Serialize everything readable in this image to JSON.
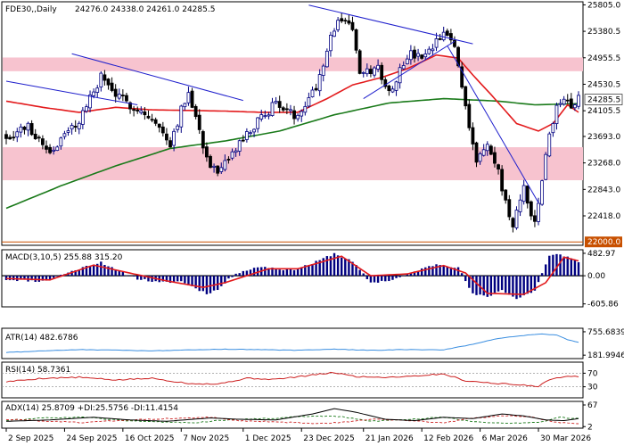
{
  "header": {
    "symbol": "FDE30,,Daily",
    "ohlc": "24276.0 24338.0 24261.0 24285.5"
  },
  "colors": {
    "bull": "#000080",
    "bear": "#000000",
    "ma_fast": "#e31a1c",
    "ma_slow": "#1a7a1a",
    "trend": "#1f1fcc",
    "zone": "#f7c3cf",
    "support": "#c85000",
    "macd_line": "#e31a1c",
    "macd_hist": "#000080",
    "atr": "#3a8ee0",
    "rsi": "#cc2020",
    "adx": "#000000",
    "dip": "#1a7a1a",
    "dim": "#cc2020"
  },
  "chart_data": {
    "type": "candlestick",
    "main": {
      "y_ticks": [
        "25805.0",
        "25380.5",
        "24955.5",
        "24530.5",
        "24105.5",
        "23693.0",
        "23268.0",
        "22843.0",
        "22418.0"
      ],
      "y_tick_values": [
        25805.0,
        25380.5,
        24955.5,
        24530.5,
        24105.5,
        23693.0,
        23268.0,
        22843.0,
        22418.0
      ],
      "ylim": [
        21960,
        25840
      ],
      "current_price_label": "24285.5",
      "current_price": 24285.5,
      "support_label": "22000.0",
      "support": 22000.0,
      "zones": [
        [
          24740,
          24960
        ],
        [
          22990,
          23520
        ]
      ],
      "candles_n": 158,
      "price_anchors": [
        [
          0,
          23700
        ],
        [
          6,
          23850
        ],
        [
          12,
          23450
        ],
        [
          20,
          23950
        ],
        [
          26,
          24650
        ],
        [
          31,
          24300
        ],
        [
          36,
          24150
        ],
        [
          40,
          23950
        ],
        [
          45,
          23600
        ],
        [
          50,
          24450
        ],
        [
          55,
          23350
        ],
        [
          58,
          23050
        ],
        [
          63,
          23500
        ],
        [
          68,
          23850
        ],
        [
          74,
          24250
        ],
        [
          79,
          24000
        ],
        [
          85,
          24500
        ],
        [
          89,
          25300
        ],
        [
          92,
          25600
        ],
        [
          95,
          25450
        ],
        [
          97,
          24650
        ],
        [
          102,
          24800
        ],
        [
          105,
          24400
        ],
        [
          110,
          25000
        ],
        [
          115,
          24950
        ],
        [
          120,
          25350
        ],
        [
          123,
          25150
        ],
        [
          126,
          24200
        ],
        [
          129,
          23300
        ],
        [
          132,
          23550
        ],
        [
          135,
          23100
        ],
        [
          139,
          22200
        ],
        [
          142,
          22900
        ],
        [
          145,
          22250
        ],
        [
          149,
          23750
        ],
        [
          152,
          24300
        ],
        [
          155,
          24200
        ],
        [
          157,
          24285
        ]
      ],
      "ma_fast_anchors": [
        [
          0,
          24260
        ],
        [
          10,
          24160
        ],
        [
          20,
          24080
        ],
        [
          30,
          24160
        ],
        [
          40,
          24120
        ],
        [
          50,
          24110
        ],
        [
          60,
          24100
        ],
        [
          70,
          24080
        ],
        [
          80,
          24080
        ],
        [
          88,
          24300
        ],
        [
          95,
          24520
        ],
        [
          103,
          24640
        ],
        [
          110,
          24780
        ],
        [
          118,
          25000
        ],
        [
          124,
          24950
        ],
        [
          128,
          24680
        ],
        [
          134,
          24300
        ],
        [
          140,
          23900
        ],
        [
          146,
          23780
        ],
        [
          150,
          23900
        ],
        [
          154,
          24200
        ],
        [
          157,
          24080
        ]
      ],
      "ma_slow_anchors": [
        [
          0,
          22540
        ],
        [
          15,
          22900
        ],
        [
          30,
          23220
        ],
        [
          45,
          23500
        ],
        [
          60,
          23620
        ],
        [
          75,
          23780
        ],
        [
          90,
          24040
        ],
        [
          105,
          24230
        ],
        [
          120,
          24300
        ],
        [
          135,
          24260
        ],
        [
          145,
          24200
        ],
        [
          157,
          24220
        ]
      ],
      "trendlines": [
        [
          [
            0,
            24580
          ],
          [
            36,
            24200
          ]
        ],
        [
          [
            18,
            25020
          ],
          [
            65,
            24270
          ]
        ],
        [
          [
            83,
            25800
          ],
          [
            128,
            25180
          ]
        ],
        [
          [
            98,
            24300
          ],
          [
            123,
            25220
          ]
        ],
        [
          [
            121,
            25150
          ],
          [
            146,
            22630
          ]
        ]
      ]
    },
    "x_ticks": [
      "2 Sep 2025",
      "24 Sep 2025",
      "16 Oct 2025",
      "7 Nov 2025",
      "1 Dec 2025",
      "23 Dec 2025",
      "21 Jan 2026",
      "12 Feb 2026",
      "6 Mar 2026",
      "30 Mar 2026"
    ],
    "x_tick_index": [
      0,
      16,
      32,
      48,
      65,
      81,
      98,
      114,
      130,
      146
    ],
    "macd": {
      "label": "MACD(3,10,5) 255.88 315.20",
      "y_ticks": [
        "482.97",
        "0.00",
        "-605.86"
      ],
      "y_tick_values": [
        482.97,
        0.0,
        -605.86
      ],
      "ylim": [
        -650,
        540
      ],
      "hist_anchors": [
        [
          0,
          -80
        ],
        [
          10,
          -120
        ],
        [
          20,
          150
        ],
        [
          26,
          300
        ],
        [
          30,
          120
        ],
        [
          36,
          -60
        ],
        [
          42,
          -150
        ],
        [
          48,
          -120
        ],
        [
          55,
          -380
        ],
        [
          58,
          -300
        ],
        [
          63,
          60
        ],
        [
          70,
          200
        ],
        [
          78,
          120
        ],
        [
          84,
          260
        ],
        [
          90,
          480
        ],
        [
          95,
          300
        ],
        [
          100,
          -150
        ],
        [
          106,
          -90
        ],
        [
          112,
          90
        ],
        [
          118,
          250
        ],
        [
          124,
          180
        ],
        [
          128,
          -400
        ],
        [
          132,
          -450
        ],
        [
          136,
          -300
        ],
        [
          140,
          -500
        ],
        [
          145,
          -320
        ],
        [
          149,
          420
        ],
        [
          152,
          470
        ],
        [
          157,
          300
        ]
      ],
      "signal_anchors": [
        [
          0,
          -60
        ],
        [
          12,
          -90
        ],
        [
          24,
          230
        ],
        [
          32,
          90
        ],
        [
          44,
          -110
        ],
        [
          54,
          -250
        ],
        [
          60,
          -150
        ],
        [
          72,
          150
        ],
        [
          80,
          150
        ],
        [
          92,
          420
        ],
        [
          100,
          0
        ],
        [
          110,
          40
        ],
        [
          120,
          220
        ],
        [
          126,
          60
        ],
        [
          132,
          -380
        ],
        [
          142,
          -400
        ],
        [
          148,
          -150
        ],
        [
          153,
          400
        ],
        [
          157,
          320
        ]
      ]
    },
    "atr": {
      "label": "ATR(14) 482.6786",
      "y_ticks": [
        "755.6839",
        "181.9946"
      ],
      "y_tick_values": [
        755.6839,
        181.9946
      ],
      "ylim": [
        120,
        820
      ],
      "anchors": [
        [
          0,
          250
        ],
        [
          20,
          320
        ],
        [
          40,
          290
        ],
        [
          60,
          330
        ],
        [
          80,
          300
        ],
        [
          90,
          330
        ],
        [
          100,
          300
        ],
        [
          110,
          320
        ],
        [
          120,
          310
        ],
        [
          128,
          450
        ],
        [
          134,
          580
        ],
        [
          140,
          650
        ],
        [
          146,
          700
        ],
        [
          151,
          680
        ],
        [
          154,
          560
        ],
        [
          157,
          500
        ]
      ]
    },
    "rsi": {
      "label": "RSI(14) 58.7361",
      "y_ticks": [
        "70",
        "30"
      ],
      "y_tick_values": [
        70,
        30
      ],
      "ylim": [
        0,
        100
      ],
      "anchors": [
        [
          0,
          45
        ],
        [
          10,
          55
        ],
        [
          20,
          58
        ],
        [
          30,
          50
        ],
        [
          40,
          55
        ],
        [
          50,
          40
        ],
        [
          58,
          38
        ],
        [
          66,
          55
        ],
        [
          74,
          52
        ],
        [
          82,
          62
        ],
        [
          90,
          72
        ],
        [
          96,
          60
        ],
        [
          104,
          58
        ],
        [
          112,
          62
        ],
        [
          120,
          68
        ],
        [
          126,
          48
        ],
        [
          132,
          42
        ],
        [
          140,
          36
        ],
        [
          146,
          32
        ],
        [
          150,
          55
        ],
        [
          154,
          62
        ],
        [
          157,
          59
        ]
      ]
    },
    "adx": {
      "label": "ADX(14) 25.8709 +DI:25.5756 -DI:11.4154",
      "y_ticks": [
        "67",
        "2"
      ],
      "y_tick_values": [
        67,
        2
      ],
      "ylim": [
        0,
        75
      ],
      "adx_anchors": [
        [
          0,
          18
        ],
        [
          12,
          22
        ],
        [
          24,
          30
        ],
        [
          34,
          22
        ],
        [
          44,
          18
        ],
        [
          56,
          28
        ],
        [
          64,
          24
        ],
        [
          74,
          22
        ],
        [
          84,
          40
        ],
        [
          90,
          56
        ],
        [
          96,
          45
        ],
        [
          104,
          24
        ],
        [
          112,
          20
        ],
        [
          120,
          30
        ],
        [
          128,
          26
        ],
        [
          136,
          40
        ],
        [
          142,
          34
        ],
        [
          148,
          22
        ],
        [
          153,
          20
        ],
        [
          157,
          26
        ]
      ],
      "dip_anchors": [
        [
          0,
          20
        ],
        [
          10,
          28
        ],
        [
          22,
          30
        ],
        [
          30,
          22
        ],
        [
          42,
          16
        ],
        [
          52,
          14
        ],
        [
          62,
          24
        ],
        [
          72,
          26
        ],
        [
          84,
          34
        ],
        [
          92,
          32
        ],
        [
          100,
          18
        ],
        [
          110,
          24
        ],
        [
          120,
          30
        ],
        [
          128,
          16
        ],
        [
          138,
          12
        ],
        [
          146,
          14
        ],
        [
          152,
          30
        ],
        [
          157,
          26
        ]
      ],
      "dim_anchors": [
        [
          0,
          24
        ],
        [
          12,
          18
        ],
        [
          22,
          14
        ],
        [
          32,
          22
        ],
        [
          44,
          26
        ],
        [
          56,
          30
        ],
        [
          64,
          20
        ],
        [
          74,
          16
        ],
        [
          84,
          12
        ],
        [
          92,
          14
        ],
        [
          100,
          24
        ],
        [
          110,
          20
        ],
        [
          120,
          14
        ],
        [
          128,
          28
        ],
        [
          136,
          34
        ],
        [
          144,
          32
        ],
        [
          150,
          16
        ],
        [
          157,
          11
        ]
      ]
    }
  }
}
